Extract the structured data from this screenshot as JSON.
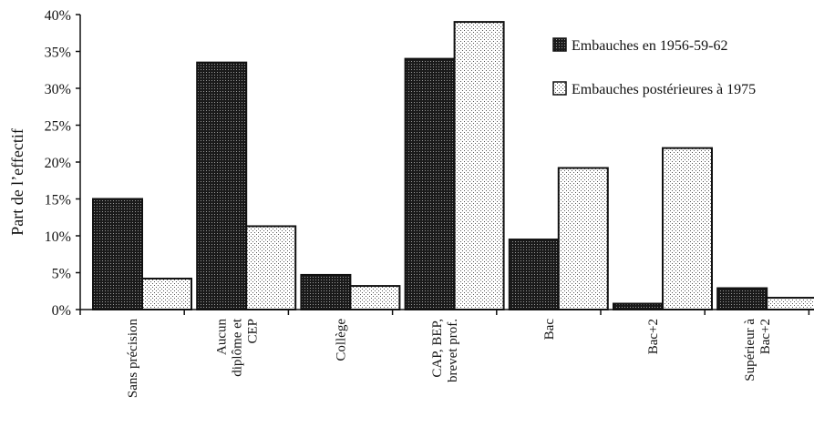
{
  "chart_data": {
    "type": "bar",
    "ylabel": "Part de l’effectif",
    "ylim": [
      0,
      40
    ],
    "yticks": [
      "0%",
      "5%",
      "10%",
      "15%",
      "20%",
      "25%",
      "30%",
      "35%",
      "40%"
    ],
    "grid": false,
    "legend_placement": "top-right",
    "categories": [
      [
        "Sans précision"
      ],
      [
        "Aucun",
        "diplôme et",
        "CEP"
      ],
      [
        "Collège"
      ],
      [
        "CAP, BEP,",
        "brevet prof."
      ],
      [
        "Bac"
      ],
      [
        "Bac+2"
      ],
      [
        "Supérieur à",
        "Bac+2"
      ]
    ],
    "series": [
      {
        "name": "Embauches en 1956-59-62",
        "pattern": "dark-dots",
        "values": [
          15.0,
          33.5,
          4.7,
          34.0,
          9.5,
          0.8,
          2.9
        ]
      },
      {
        "name": "Embauches postérieures à 1975",
        "pattern": "light-dots",
        "values": [
          4.2,
          11.3,
          3.2,
          39.0,
          19.2,
          21.9,
          1.6
        ]
      }
    ]
  }
}
